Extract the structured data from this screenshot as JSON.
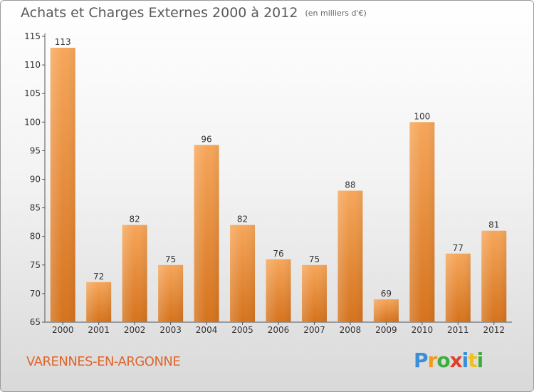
{
  "header": {
    "title": "Achats et Charges Externes 2000 à 2012",
    "subtitle": "(en milliers d'€)"
  },
  "footer": {
    "commune": "VARENNES-EN-ARGONNE",
    "logo": [
      "P",
      "r",
      "o",
      "x",
      "i",
      "t",
      "i"
    ]
  },
  "colors": {
    "bar_light": "#f6a65a",
    "bar_dark": "#d5731d",
    "text": "#333333",
    "grid": "#c8c8c8"
  },
  "chart_data": {
    "type": "bar",
    "title": "Achats et Charges Externes 2000 à 2012",
    "subtitle": "(en milliers d'€)",
    "categories": [
      "2000",
      "2001",
      "2002",
      "2003",
      "2004",
      "2005",
      "2006",
      "2007",
      "2008",
      "2009",
      "2010",
      "2011",
      "2012"
    ],
    "values": [
      113,
      72,
      82,
      75,
      96,
      82,
      76,
      75,
      88,
      69,
      100,
      77,
      81
    ],
    "ylim": [
      65,
      115
    ],
    "yticks": [
      65,
      70,
      75,
      80,
      85,
      90,
      95,
      100,
      105,
      110,
      115
    ],
    "grid": false,
    "data_labels": true
  }
}
